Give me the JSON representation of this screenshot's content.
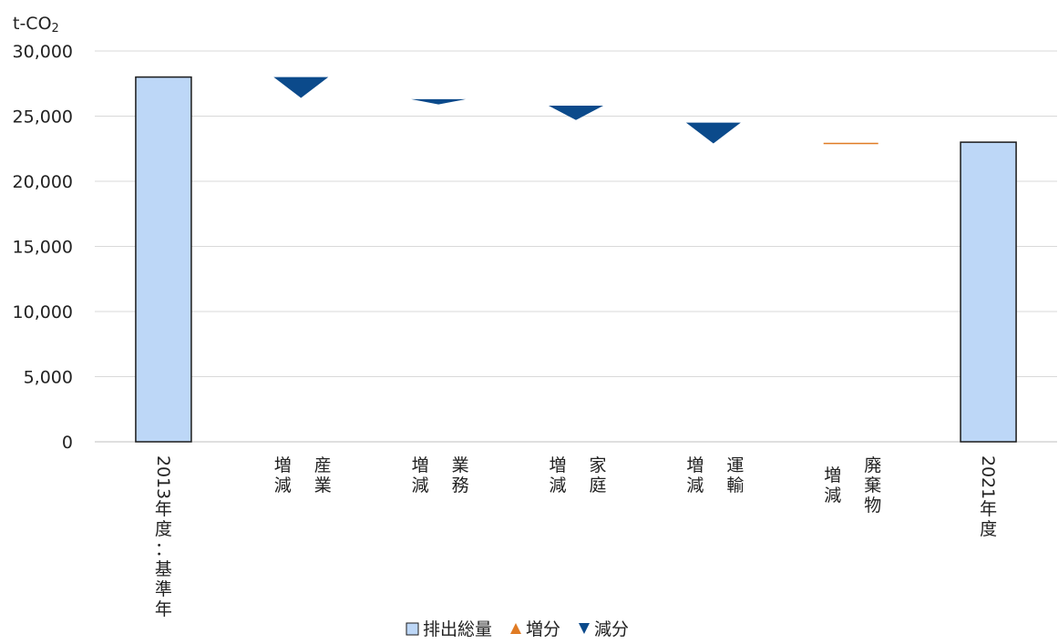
{
  "chart_data": {
    "type": "bar",
    "subtype": "waterfall",
    "unit_label_main": "t-CO",
    "unit_label_sub": "2",
    "ylim": [
      0,
      30000
    ],
    "yticks": [
      "0",
      "5,000",
      "10,000",
      "15,000",
      "20,000",
      "25,000",
      "30,000"
    ],
    "grid": true,
    "legend_position": "bottom",
    "colors": {
      "total": "#bdd7f7",
      "increase": "#e07b24",
      "decrease": "#0b4a8b",
      "grid": "#d9d9d9",
      "axis": "#bfbfbf"
    },
    "legend": [
      {
        "name": "排出総量",
        "marker": "square"
      },
      {
        "name": "増分",
        "marker": "triangle-up"
      },
      {
        "name": "減分",
        "marker": "triangle-down"
      }
    ],
    "categories": [
      {
        "kind": "total",
        "label_lines": [
          "2013年度：基準年"
        ],
        "value": 28000
      },
      {
        "kind": "delta",
        "label_lines": [
          "増 産",
          "減 業"
        ],
        "from": 28000,
        "to": 26400
      },
      {
        "kind": "delta",
        "label_lines": [
          "増 業",
          "減 務"
        ],
        "from": 26300,
        "to": 25900
      },
      {
        "kind": "delta",
        "label_lines": [
          "増 家",
          "減 庭"
        ],
        "from": 25800,
        "to": 24700
      },
      {
        "kind": "delta",
        "label_lines": [
          "増 運",
          "減 輸"
        ],
        "from": 24500,
        "to": 22900
      },
      {
        "kind": "delta",
        "label_lines": [
          "増 廃",
          "減 棄",
          "物"
        ],
        "from": 22900,
        "to": 22950
      },
      {
        "kind": "total",
        "label_lines": [
          "2021年度"
        ],
        "value": 23000
      }
    ]
  }
}
